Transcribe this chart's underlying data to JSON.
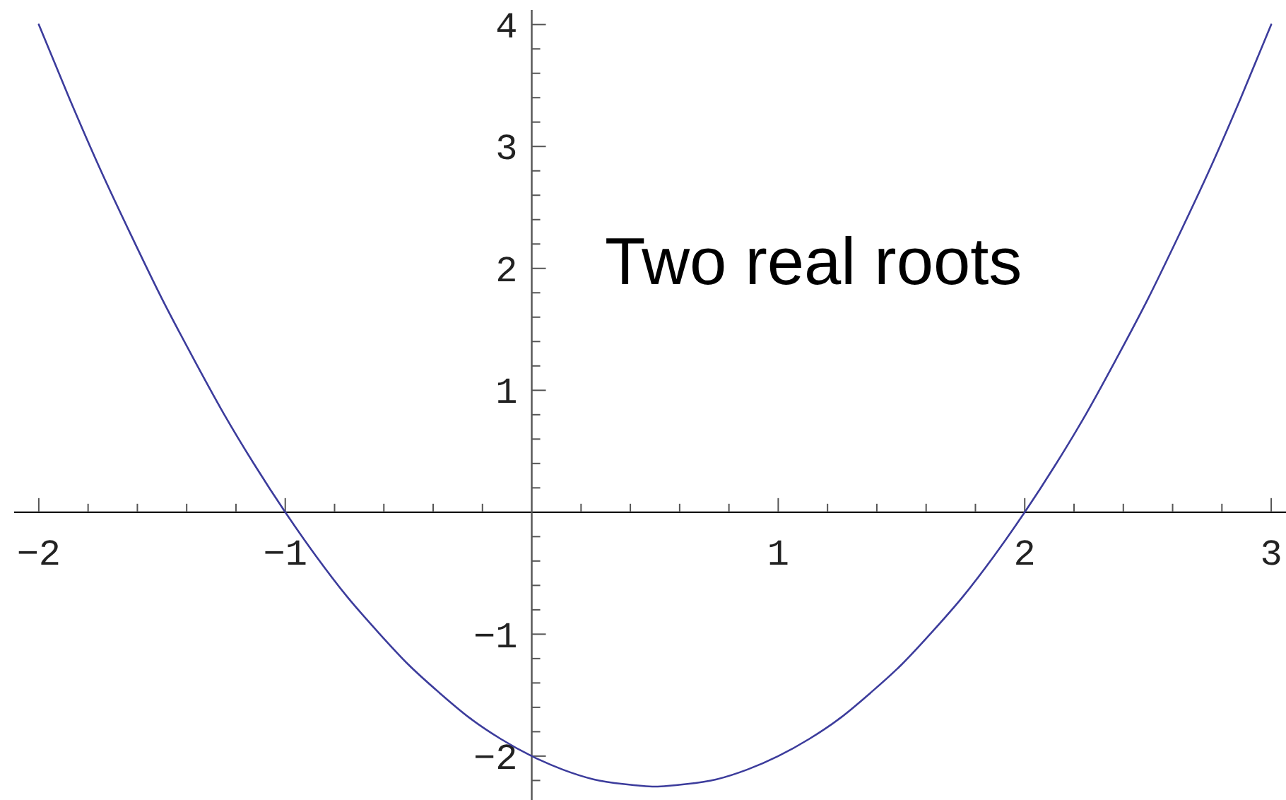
{
  "chart_data": {
    "type": "line",
    "x": [
      -2,
      -1.875,
      -1.75,
      -1.625,
      -1.5,
      -1.375,
      -1.25,
      -1.125,
      -1,
      -0.875,
      -0.75,
      -0.625,
      -0.5,
      -0.375,
      -0.25,
      -0.125,
      0,
      0.125,
      0.25,
      0.375,
      0.5,
      0.625,
      0.75,
      0.875,
      1,
      1.125,
      1.25,
      1.375,
      1.5,
      1.625,
      1.75,
      1.875,
      2,
      2.125,
      2.25,
      2.375,
      2.5,
      2.625,
      2.75,
      2.875,
      3
    ],
    "series": [
      {
        "color": "#3c3c9c",
        "values": [
          4,
          3.39,
          2.81,
          2.27,
          1.75,
          1.27,
          0.81,
          0.39,
          0,
          -0.36,
          -0.69,
          -0.98,
          -1.25,
          -1.48,
          -1.69,
          -1.86,
          -2,
          -2.11,
          -2.19,
          -2.23,
          -2.25,
          -2.23,
          -2.19,
          -2.11,
          -2,
          -1.86,
          -1.69,
          -1.48,
          -1.25,
          -0.98,
          -0.69,
          -0.36,
          0,
          0.39,
          0.81,
          1.27,
          1.75,
          2.27,
          2.81,
          3.39,
          4
        ]
      }
    ],
    "xlim": [
      -2.1,
      3.06
    ],
    "ylim": [
      -2.36,
      4.12
    ],
    "xticks": [
      -2,
      {
        "value": -1.8,
        "label": null
      },
      {
        "value": -1.6,
        "label": null
      },
      {
        "value": -1.4,
        "label": null
      },
      {
        "value": -1.2,
        "label": null
      },
      -1,
      {
        "value": -0.8,
        "label": null
      },
      {
        "value": -0.6,
        "label": null
      },
      {
        "value": -0.4,
        "label": null
      },
      {
        "value": -0.2,
        "label": null
      },
      {
        "value": 0.2,
        "label": null
      },
      {
        "value": 0.4,
        "label": null
      },
      {
        "value": 0.6,
        "label": null
      },
      {
        "value": 0.8,
        "label": null
      },
      1,
      {
        "value": 1.2,
        "label": null
      },
      {
        "value": 1.4,
        "label": null
      },
      {
        "value": 1.6,
        "label": null
      },
      {
        "value": 1.8,
        "label": null
      },
      2,
      {
        "value": 2.2,
        "label": null
      },
      {
        "value": 2.4,
        "label": null
      },
      {
        "value": 2.6,
        "label": null
      },
      {
        "value": 2.8,
        "label": null
      },
      3
    ],
    "yticks": [
      {
        "value": -2.2,
        "label": null
      },
      -2,
      {
        "value": -1.8,
        "label": null
      },
      {
        "value": -1.6,
        "label": null
      },
      {
        "value": -1.4,
        "label": null
      },
      {
        "value": -1.2,
        "label": null
      },
      -1,
      {
        "value": -0.8,
        "label": null
      },
      {
        "value": -0.6,
        "label": null
      },
      {
        "value": -0.4,
        "label": null
      },
      {
        "value": -0.2,
        "label": null
      },
      {
        "value": 0.2,
        "label": null
      },
      {
        "value": 0.4,
        "label": null
      },
      {
        "value": 0.6,
        "label": null
      },
      {
        "value": 0.8,
        "label": null
      },
      1,
      {
        "value": 1.2,
        "label": null
      },
      {
        "value": 1.4,
        "label": null
      },
      {
        "value": 1.6,
        "label": null
      },
      {
        "value": 1.8,
        "label": null
      },
      2,
      {
        "value": 2.2,
        "label": null
      },
      {
        "value": 2.4,
        "label": null
      },
      {
        "value": 2.6,
        "label": null
      },
      {
        "value": 2.8,
        "label": null
      },
      3,
      {
        "value": 3.2,
        "label": null
      },
      {
        "value": 3.4,
        "label": null
      },
      {
        "value": 3.6,
        "label": null
      },
      {
        "value": 3.8,
        "label": null
      },
      4
    ],
    "annotations": [
      "Two real roots"
    ]
  }
}
